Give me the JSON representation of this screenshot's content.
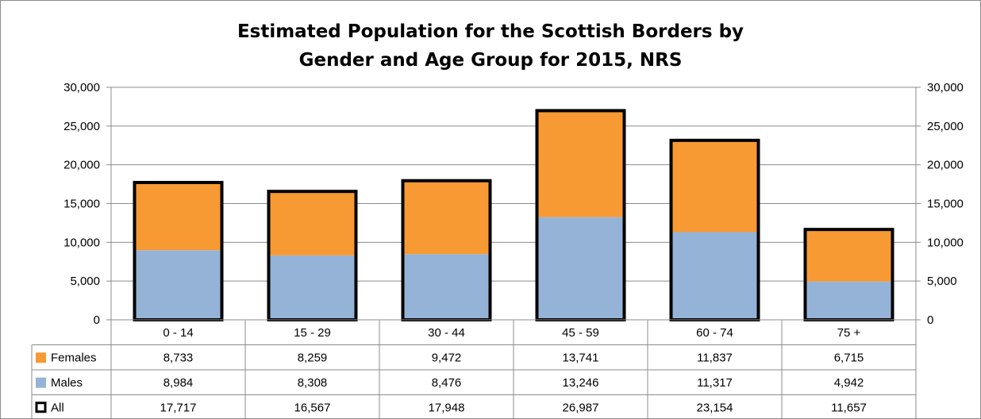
{
  "chart_data": {
    "type": "bar",
    "stacked": true,
    "title_lines": [
      "Estimated Population for the Scottish Borders by",
      "Gender and Age Group for 2015, NRS"
    ],
    "categories": [
      "0 - 14",
      "15 - 29",
      "30 - 44",
      "45 - 59",
      "60 - 74",
      "75 +"
    ],
    "series": [
      {
        "name": "Males",
        "color": "#95b3d7",
        "values": [
          8984,
          8308,
          8476,
          13246,
          11317,
          4942
        ],
        "labels": [
          "8,984",
          "8,308",
          "8,476",
          "13,246",
          "11,317",
          "4,942"
        ]
      },
      {
        "name": "Females",
        "color": "#f79a34",
        "values": [
          8733,
          8259,
          9472,
          13741,
          11837,
          6715
        ],
        "labels": [
          "8,733",
          "8,259",
          "9,472",
          "13,741",
          "11,837",
          "6,715"
        ]
      }
    ],
    "totals": {
      "name": "All",
      "outline_color": "#000000",
      "values": [
        17717,
        16567,
        17948,
        26987,
        23154,
        11657
      ],
      "labels": [
        "17,717",
        "16,567",
        "17,948",
        "26,987",
        "23,154",
        "11,657"
      ]
    },
    "table_row_order": [
      "Females",
      "Males",
      "All"
    ],
    "ylim": [
      0,
      30000
    ],
    "yticks": [
      0,
      5000,
      10000,
      15000,
      20000,
      25000,
      30000
    ],
    "ytick_labels": [
      "0",
      "5,000",
      "10,000",
      "15,000",
      "20,000",
      "25,000",
      "30,000"
    ],
    "secondary_y_axis": true,
    "grid": true,
    "data_table": true,
    "legend": "data-table"
  }
}
